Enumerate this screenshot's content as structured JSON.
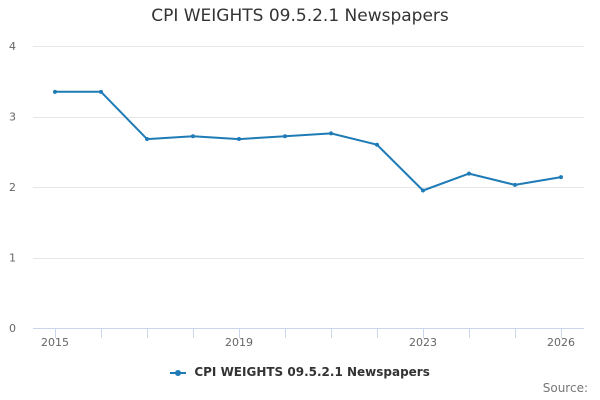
{
  "chart_data": {
    "type": "line",
    "title": "CPI WEIGHTS 09.5.2.1 Newspapers",
    "xlabel": "",
    "ylabel": "",
    "x": [
      2015,
      2016,
      2017,
      2018,
      2019,
      2020,
      2021,
      2022,
      2023,
      2024,
      2025,
      2026
    ],
    "series": [
      {
        "name": "CPI WEIGHTS 09.5.2.1 Newspapers",
        "color": "#1f7bb6",
        "values": [
          3.35,
          3.35,
          2.68,
          2.72,
          2.68,
          2.72,
          2.76,
          2.6,
          1.95,
          2.19,
          2.03,
          2.14
        ]
      }
    ],
    "xlim": [
      2015,
      2026
    ],
    "ylim": [
      0,
      4
    ],
    "x_ticks": [
      2015,
      2019,
      2023,
      2026
    ],
    "y_ticks": [
      0,
      1,
      2,
      3,
      4
    ],
    "grid": true,
    "legend_position": "bottom-center"
  },
  "credits": "Source:"
}
